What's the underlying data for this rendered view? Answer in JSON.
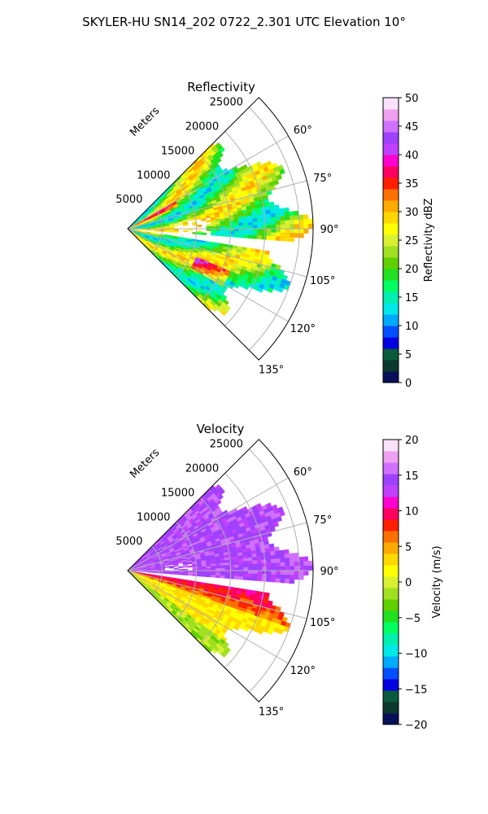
{
  "figure_title": "SKYLER-HU  SN14_202  0722_2.301 UTC Elevation 10°",
  "chart_data": [
    {
      "type": "heatmap",
      "title": "Reflectivity",
      "projection": "polar-sector",
      "azimuth_range_deg": [
        45,
        135
      ],
      "azimuth_ticks": [
        "60°",
        "75°",
        "90°",
        "105°",
        "120°",
        "135°"
      ],
      "range_label": "Meters",
      "range_ticks": [
        "5000",
        "10000",
        "15000",
        "20000",
        "25000"
      ],
      "rlim": [
        0,
        27000
      ],
      "colorbar": {
        "label": "Reflectivity dBZ",
        "vmin": 0,
        "vmax": 50,
        "ticks": [
          "0",
          "5",
          "10",
          "15",
          "20",
          "25",
          "30",
          "35",
          "40",
          "45",
          "50"
        ],
        "colors": [
          "#08105a",
          "#0b3a2c",
          "#0a5a3c",
          "#0000e0",
          "#0050ff",
          "#00aaff",
          "#00e8e8",
          "#00f0b0",
          "#00ff60",
          "#20e020",
          "#60d000",
          "#a0e020",
          "#d8f030",
          "#ffff00",
          "#ffd800",
          "#ffaa00",
          "#ff7000",
          "#ff2000",
          "#ff0060",
          "#ff00d0",
          "#c040ff",
          "#a040ff",
          "#d070ff",
          "#f0a0f0",
          "#fae0fa"
        ]
      },
      "gaps_deg": [
        [
          95,
          99
        ]
      ],
      "grid": true
    },
    {
      "type": "heatmap",
      "title": "Velocity",
      "projection": "polar-sector",
      "azimuth_range_deg": [
        45,
        135
      ],
      "azimuth_ticks": [
        "60°",
        "75°",
        "90°",
        "105°",
        "120°",
        "135°"
      ],
      "range_label": "Meters",
      "range_ticks": [
        "5000",
        "10000",
        "15000",
        "20000",
        "25000"
      ],
      "rlim": [
        0,
        27000
      ],
      "colorbar": {
        "label": "Velocity (m/s)",
        "vmin": -20,
        "vmax": 20,
        "ticks": [
          "−20",
          "−15",
          "−10",
          "−5",
          "0",
          "5",
          "10",
          "15",
          "20"
        ],
        "colors": [
          "#08105a",
          "#0b3a2c",
          "#0a5a3c",
          "#0000e0",
          "#0050ff",
          "#00aaff",
          "#00e8e8",
          "#00f0b0",
          "#00ff60",
          "#20e020",
          "#60d000",
          "#a0e020",
          "#d8f030",
          "#ffff00",
          "#ffd800",
          "#ffaa00",
          "#ff7000",
          "#ff2000",
          "#ff0060",
          "#ff00d0",
          "#c040ff",
          "#a040ff",
          "#d070ff",
          "#f0a0f0",
          "#fae0fa"
        ]
      },
      "gaps_deg": [
        [
          95,
          99
        ]
      ],
      "grid": true
    }
  ]
}
